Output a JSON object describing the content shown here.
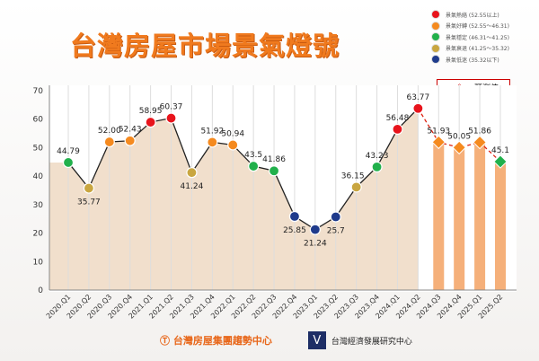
{
  "title": "台灣房屋市場景氣燈號",
  "legend": [
    {
      "label": "景氣熱絡 (52.55以上)",
      "color": "#e8141c"
    },
    {
      "label": "景氣好轉 (52.55～46.31)",
      "color": "#f58a1f"
    },
    {
      "label": "景氣穩定 (46.31～41.25)",
      "color": "#21b04b"
    },
    {
      "label": "景氣衰退 (41.25～35.32)",
      "color": "#c9a640"
    },
    {
      "label": "景氣低迷 (35.32以下)",
      "color": "#1f3b8c"
    }
  ],
  "forecast_label": "預測值",
  "footer": {
    "left": "台灣房屋集團趨勢中心",
    "right": "台灣經濟發展研究中心"
  },
  "chart_data": {
    "type": "line",
    "x": [
      "2020.Q1",
      "2020.Q2",
      "2020.Q3",
      "2020.Q4",
      "2021.Q1",
      "2021.Q2",
      "2021.Q3",
      "2021.Q4",
      "2022.Q1",
      "2022.Q2",
      "2022.Q3",
      "2022.Q4",
      "2023.Q1",
      "2023.Q2",
      "2023.Q3",
      "2023.Q4",
      "2024.Q1",
      "2024.Q2",
      "2024.Q3",
      "2024.Q4",
      "2025.Q1",
      "2025.Q2"
    ],
    "values": [
      44.79,
      35.77,
      52.0,
      52.43,
      58.95,
      60.37,
      41.24,
      51.92,
      50.94,
      43.5,
      41.86,
      25.85,
      21.24,
      25.7,
      36.15,
      43.23,
      56.48,
      63.77,
      51.93,
      50.05,
      51.86,
      45.1
    ],
    "labels": [
      "44.79",
      "35.77",
      "52.00",
      "52.43",
      "58.95",
      "60.37",
      "41.24",
      "51.92",
      "50.94",
      "43.5",
      "41.86",
      "25.85",
      "21.24",
      "25.7",
      "36.15",
      "43.23",
      "56.48",
      "63.77",
      "51.93",
      "50.05",
      "51.86",
      "45.1"
    ],
    "forecast_from_index": 18,
    "ylim": [
      0,
      70
    ],
    "yticks": [
      0,
      10,
      20,
      30,
      40,
      50,
      60,
      70
    ],
    "grid": "vertical",
    "legend_position": "top-right"
  }
}
